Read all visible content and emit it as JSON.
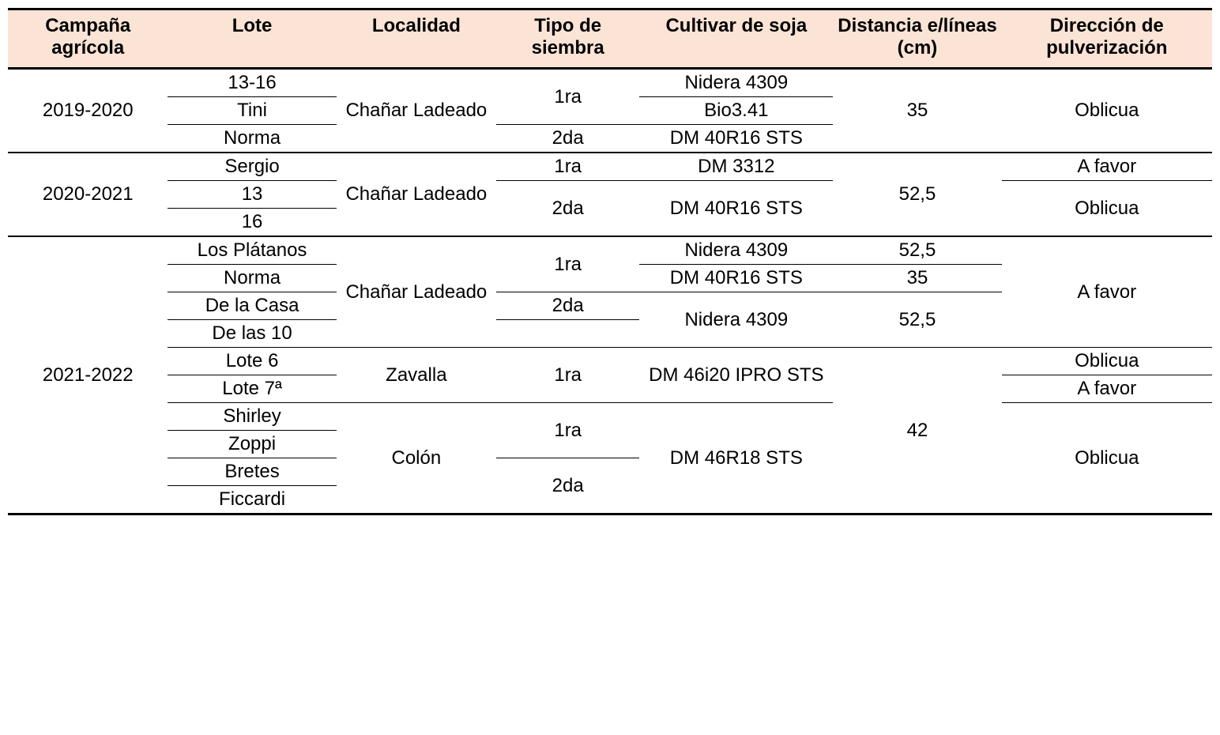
{
  "table": {
    "headers": {
      "campana": "Campaña agrícola",
      "lote": "Lote",
      "localidad": "Localidad",
      "siembra": "Tipo de siembra",
      "cultivar": "Cultivar de soja",
      "distancia": "Distancia e/líneas (cm)",
      "direccion": "Dirección de pulverización"
    },
    "header_bg_color": "#fbe4d5",
    "border_color": "#000000",
    "font_size_pt": 18,
    "campaigns": {
      "c2019": "2019-2020",
      "c2020": "2020-2021",
      "c2021": "2021-2022"
    },
    "localidades": {
      "chanar": "Chañar Ladeado",
      "zavalla": "Zavalla",
      "colon": "Colón"
    },
    "siembras": {
      "primera": "1ra",
      "segunda": "2da"
    },
    "direcciones": {
      "oblicua": "Oblicua",
      "afavor": "A favor"
    },
    "distancias": {
      "d35": "35",
      "d52_5": "52,5",
      "d42": "42"
    },
    "lotes": {
      "l_13_16": "13-16",
      "l_tini": "Tini",
      "l_norma": "Norma",
      "l_sergio": "Sergio",
      "l_13": "13",
      "l_16": "16",
      "l_los_platanos": "Los Plátanos",
      "l_de_la_casa": "De la Casa",
      "l_de_las_10": "De las 10",
      "l_lote6": "Lote 6",
      "l_lote7a": "Lote 7ª",
      "l_shirley": "Shirley",
      "l_zoppi": "Zoppi",
      "l_bretes": "Bretes",
      "l_ficcardi": "Ficcardi"
    },
    "cultivares": {
      "nidera4309": "Nidera 4309",
      "bio341": "Bio3.41",
      "dm40r16": "DM 40R16 STS",
      "dm3312": "DM 3312",
      "dm46i20": "DM 46i20 IPRO STS",
      "dm46r18": "DM 46R18 STS"
    }
  }
}
